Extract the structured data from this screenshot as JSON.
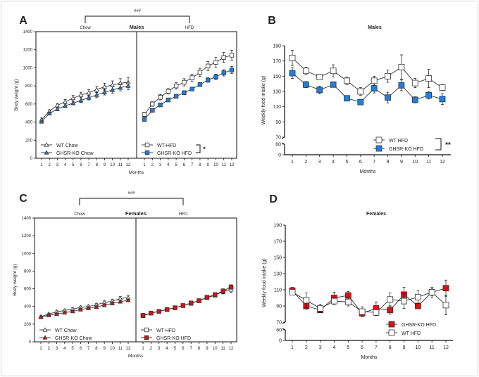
{
  "chart_data": [
    {
      "panel": "A",
      "type": "line",
      "title": "Males",
      "xlabel": "Months",
      "ylabel": "Body weight (g)",
      "ylim": [
        0,
        1400
      ],
      "yticks": [
        "0",
        "200",
        "400",
        "600",
        "800",
        "1000",
        "1200",
        "1400"
      ],
      "x": [
        1,
        2,
        3,
        4,
        5,
        6,
        7,
        8,
        9,
        10,
        11,
        12
      ],
      "x_tick_labels": [
        "1",
        "2",
        "3",
        "4",
        "5",
        "6",
        "7",
        "8",
        "9",
        "10",
        "11",
        "12"
      ],
      "subpanels": [
        {
          "label": "Chow",
          "series": [
            {
              "name": "WT Chow",
              "marker": "triangle",
              "fill": "#ffffff",
              "values": [
                425,
                520,
                585,
                625,
                665,
                700,
                725,
                760,
                790,
                810,
                830,
                840
              ],
              "errors": [
                20,
                15,
                20,
                25,
                30,
                30,
                35,
                35,
                40,
                45,
                50,
                55
              ]
            },
            {
              "name": "GHSR-KO Chow",
              "marker": "triangle",
              "fill": "#1f7fe0",
              "values": [
                405,
                495,
                545,
                580,
                610,
                640,
                670,
                700,
                730,
                755,
                780,
                800
              ],
              "errors": [
                15,
                15,
                20,
                20,
                20,
                25,
                25,
                30,
                30,
                35,
                35,
                40
              ]
            }
          ]
        },
        {
          "label": "HFD",
          "series": [
            {
              "name": "WT-HFD",
              "marker": "square",
              "fill": "#ffffff",
              "values": [
                485,
                600,
                675,
                740,
                800,
                840,
                890,
                950,
                1020,
                1060,
                1115,
                1140
              ],
              "errors": [
                25,
                25,
                30,
                30,
                35,
                40,
                40,
                45,
                50,
                55,
                55,
                55
              ]
            },
            {
              "name": "GHSR-KO HFD",
              "marker": "square",
              "fill": "#1f7fe0",
              "values": [
                430,
                530,
                590,
                645,
                685,
                725,
                765,
                815,
                865,
                900,
                945,
                975
              ],
              "errors": [
                15,
                15,
                15,
                15,
                15,
                15,
                20,
                20,
                25,
                30,
                35,
                40
              ]
            }
          ]
        }
      ],
      "bracket_label": "###",
      "significance": "*"
    },
    {
      "panel": "B",
      "type": "line",
      "title": "Males",
      "xlabel": "Months",
      "ylabel": "Weekly food intake (g)",
      "ylim": [
        0,
        190
      ],
      "axis_break": [
        60,
        70
      ],
      "yticks": [
        "0",
        "60",
        "70",
        "90",
        "110",
        "130",
        "150",
        "170",
        "190"
      ],
      "x": [
        1,
        2,
        3,
        4,
        5,
        6,
        7,
        8,
        9,
        10,
        11,
        12
      ],
      "x_tick_labels": [
        "1",
        "2",
        "3",
        "4",
        "5",
        "6",
        "7",
        "8",
        "9",
        "10",
        "11",
        "12"
      ],
      "series": [
        {
          "name": "WT HFD",
          "marker": "square",
          "fill": "#ffffff",
          "values": [
            174,
            157,
            149,
            157,
            144,
            130,
            144,
            150,
            162,
            141,
            147,
            135
          ],
          "errors": [
            10,
            5,
            2,
            8,
            5,
            5,
            6,
            8,
            16,
            6,
            12,
            4
          ]
        },
        {
          "name": "GHSR-KO HFD",
          "marker": "square",
          "fill": "#1f7fe0",
          "values": [
            154,
            139,
            132,
            139,
            121,
            116,
            134,
            122,
            138,
            119,
            125,
            120
          ],
          "errors": [
            7,
            4,
            5,
            2,
            2,
            3,
            6,
            7,
            7,
            4,
            5,
            7
          ]
        }
      ],
      "significance": "**"
    },
    {
      "panel": "C",
      "type": "line",
      "title": "Females",
      "xlabel": "Months",
      "ylabel": "Body weight (g)",
      "ylim": [
        0,
        1400
      ],
      "yticks": [
        "0",
        "200",
        "400",
        "600",
        "800",
        "1000",
        "1200",
        "1400"
      ],
      "x": [
        1,
        2,
        3,
        4,
        5,
        6,
        7,
        8,
        9,
        10,
        11,
        12
      ],
      "x_tick_labels": [
        "1",
        "2",
        "3",
        "4",
        "5",
        "6",
        "7",
        "8",
        "9",
        "10",
        "11",
        "12"
      ],
      "subpanels": [
        {
          "label": "Chow",
          "series": [
            {
              "name": "WT Chow",
              "marker": "triangle",
              "fill": "#ffffff",
              "values": [
                285,
                315,
                340,
                355,
                370,
                390,
                400,
                420,
                445,
                460,
                490,
                500
              ],
              "errors": [
                10,
                10,
                12,
                12,
                15,
                15,
                15,
                15,
                18,
                20,
                22,
                25
              ]
            },
            {
              "name": "GHSR-KO Chow",
              "marker": "triangle",
              "fill": "#e01010",
              "values": [
                280,
                300,
                315,
                330,
                345,
                365,
                380,
                395,
                415,
                435,
                455,
                470
              ],
              "errors": [
                8,
                8,
                10,
                10,
                10,
                12,
                12,
                12,
                15,
                15,
                15,
                15
              ]
            }
          ]
        },
        {
          "label": "HFD",
          "series": [
            {
              "name": "WT HFD",
              "marker": "square",
              "fill": "#ffffff",
              "values": [
                295,
                325,
                345,
                365,
                385,
                410,
                435,
                465,
                500,
                525,
                570,
                595
              ],
              "errors": [
                8,
                8,
                8,
                10,
                10,
                10,
                12,
                15,
                18,
                20,
                28,
                35
              ]
            },
            {
              "name": "GHSR-KO HFD",
              "marker": "square",
              "fill": "#e01010",
              "values": [
                300,
                325,
                345,
                365,
                385,
                410,
                440,
                465,
                505,
                535,
                575,
                620
              ],
              "errors": [
                8,
                8,
                8,
                10,
                10,
                10,
                12,
                15,
                18,
                20,
                25,
                25
              ]
            }
          ]
        }
      ],
      "bracket_label": "###"
    },
    {
      "panel": "D",
      "type": "line",
      "title": "Females",
      "xlabel": "Months",
      "ylabel": "Weekly food intake (g)",
      "ylim": [
        0,
        190
      ],
      "axis_break": [
        60,
        70
      ],
      "yticks": [
        "0",
        "60",
        "70",
        "90",
        "110",
        "130",
        "150",
        "170",
        "190"
      ],
      "x": [
        1,
        2,
        3,
        4,
        5,
        6,
        7,
        8,
        9,
        10,
        11,
        12
      ],
      "x_tick_labels": [
        "1",
        "2",
        "3",
        "4",
        "5",
        "6",
        "7",
        "8",
        "9",
        "10",
        "11",
        "12"
      ],
      "series": [
        {
          "name": "GHSR-KO HFD",
          "marker": "square",
          "fill": "#e01010",
          "values": [
            109,
            90,
            85,
            100,
            103,
            81,
            87,
            85,
            104,
            90,
            107,
            112
          ],
          "errors": [
            4,
            4,
            3,
            7,
            5,
            4,
            8,
            5,
            9,
            3,
            4,
            10
          ]
        },
        {
          "name": "WT HFD",
          "marker": "square",
          "fill": "#ffffff",
          "values": [
            107,
            97,
            87,
            96,
            95,
            83,
            82,
            98,
            96,
            101,
            107,
            91
          ],
          "errors": [
            3,
            9,
            5,
            4,
            5,
            6,
            4,
            8,
            9,
            8,
            6,
            12
          ]
        }
      ]
    }
  ]
}
